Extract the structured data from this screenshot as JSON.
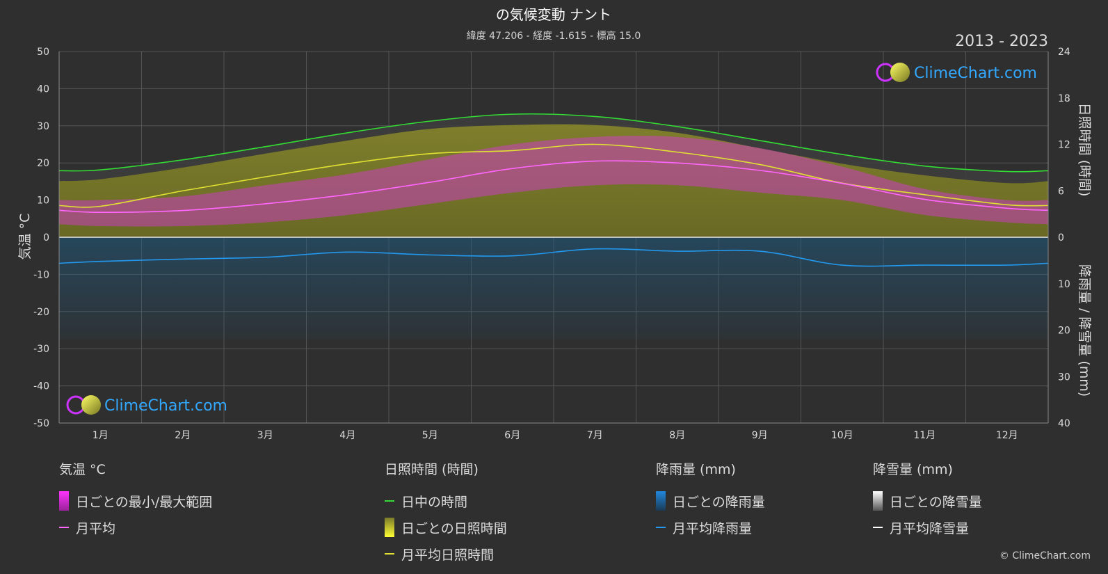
{
  "header": {
    "title": "の気候変動 ナント",
    "subtitle": "緯度 47.206 - 経度 -1.615 - 標高 15.0",
    "years": "2013 - 2023"
  },
  "watermark": "ClimeChart.com",
  "copyright": "© ClimeChart.com",
  "chart_data": {
    "type": "line",
    "categories": [
      "1月",
      "2月",
      "3月",
      "4月",
      "5月",
      "6月",
      "7月",
      "8月",
      "9月",
      "10月",
      "11月",
      "12月"
    ],
    "y_left": {
      "label": "気温 °C",
      "range": [
        -50,
        50
      ],
      "ticks": [
        50,
        40,
        30,
        20,
        10,
        0,
        -10,
        -20,
        -30,
        -40,
        -50
      ]
    },
    "y_right_top": {
      "label": "日照時間 (時間)",
      "range": [
        0,
        24
      ],
      "ticks": [
        24,
        18,
        12,
        6,
        0
      ]
    },
    "y_right_bottom": {
      "label": "降雨量 / 降雪量 (mm)",
      "range": [
        0,
        40
      ],
      "ticks": [
        10,
        20,
        30,
        40
      ]
    },
    "series": [
      {
        "name": "日中の時間",
        "axis": "sunshine_hours",
        "color": "#33dd33",
        "values": [
          8.7,
          10.0,
          11.7,
          13.5,
          15.0,
          15.9,
          15.6,
          14.3,
          12.5,
          10.7,
          9.2,
          8.5
        ]
      },
      {
        "name": "月平均日照時間",
        "axis": "sunshine_hours",
        "color": "#e0e033",
        "values": [
          4.0,
          6.0,
          7.8,
          9.5,
          10.8,
          11.2,
          12.0,
          11.0,
          9.4,
          7.0,
          5.5,
          4.2
        ]
      },
      {
        "name": "月平均",
        "axis": "temperature",
        "color": "#ff66ff",
        "values": [
          6.7,
          7.2,
          9.0,
          11.5,
          14.8,
          18.5,
          20.5,
          20.0,
          18.0,
          14.5,
          10.2,
          7.8
        ]
      },
      {
        "name": "月平均降雨量",
        "axis": "precipitation",
        "color": "#2299ee",
        "values": [
          5.2,
          4.7,
          4.3,
          3.2,
          3.8,
          4.0,
          2.5,
          3.0,
          3.0,
          6.0,
          6.0,
          6.0
        ]
      },
      {
        "name": "月平均降雪量",
        "axis": "precipitation",
        "color": "#ffffff",
        "values": [
          0,
          0,
          0,
          0,
          0,
          0,
          0,
          0,
          0,
          0,
          0,
          0
        ]
      }
    ],
    "bands": {
      "daily_temp_range_min": [
        3,
        3,
        4,
        6,
        9,
        12,
        14,
        14,
        12,
        10,
        6,
        4
      ],
      "daily_temp_range_max": [
        10,
        11,
        14,
        17,
        21,
        25,
        27,
        27,
        24,
        19,
        13,
        10
      ],
      "daily_sunshine": [
        7.5,
        9.0,
        10.8,
        12.5,
        14.0,
        14.5,
        14.5,
        13.5,
        11.5,
        9.5,
        8.0,
        7.0
      ]
    },
    "grid": true
  },
  "legend": {
    "temperature": {
      "title": "気温 °C",
      "items": [
        {
          "label": "日ごとの最小/最大範囲"
        },
        {
          "label": "月平均"
        }
      ]
    },
    "sunshine": {
      "title": "日照時間 (時間)",
      "items": [
        {
          "label": "日中の時間"
        },
        {
          "label": "日ごとの日照時間"
        },
        {
          "label": "月平均日照時間"
        }
      ]
    },
    "rain": {
      "title": "降雨量 (mm)",
      "items": [
        {
          "label": "日ごとの降雨量"
        },
        {
          "label": "月平均降雨量"
        }
      ]
    },
    "snow": {
      "title": "降雪量 (mm)",
      "items": [
        {
          "label": "日ごとの降雪量"
        },
        {
          "label": "月平均降雪量"
        }
      ]
    }
  },
  "colors": {
    "background": "#2f2f2f",
    "temp_range": "#dd33dd",
    "sunshine_fill": "#b3b32a",
    "rain_fill": "#1f5a80",
    "watermark": "#33a8ff"
  }
}
